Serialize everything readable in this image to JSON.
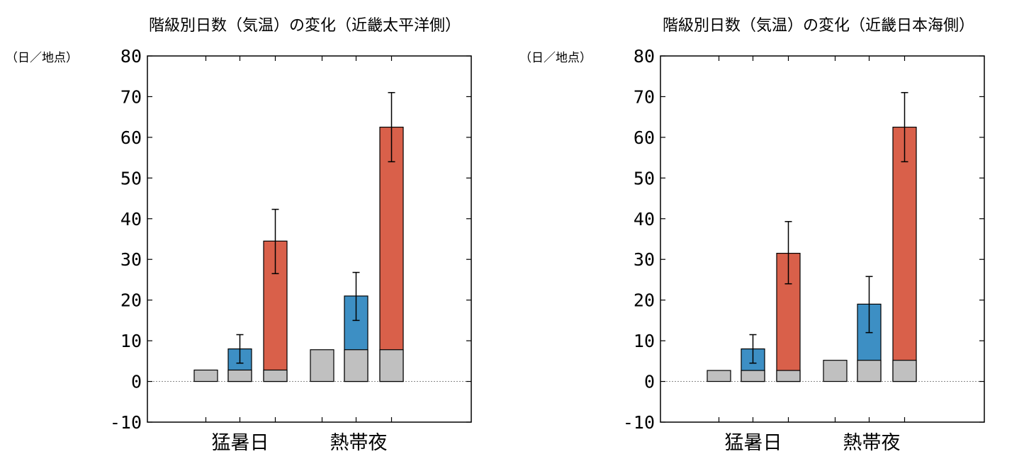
{
  "colors": {
    "baseline_gray": "#c0c0c0",
    "blue": "#3d8fc4",
    "red": "#d9604a",
    "frame": "#000000",
    "zero_line": "#888888"
  },
  "chart_data": [
    {
      "type": "bar",
      "title": "階級別日数（気温）の変化（近畿太平洋側）",
      "ylabel": "（日／地点）",
      "ylim": [
        -10,
        80
      ],
      "yticks": [
        "-10",
        "0",
        "10",
        "20",
        "30",
        "40",
        "50",
        "60",
        "70",
        "80"
      ],
      "groups": [
        "猛暑日",
        "熱帯夜"
      ],
      "bars": [
        {
          "group": "猛暑日",
          "kind": "present",
          "base": 2.8,
          "total": 2.8,
          "err": null
        },
        {
          "group": "猛暑日",
          "kind": "2c",
          "base": 2.8,
          "total": 8.0,
          "err": [
            4.5,
            11.5
          ]
        },
        {
          "group": "猛暑日",
          "kind": "4c",
          "base": 2.8,
          "total": 34.5,
          "err": [
            26.5,
            42.3
          ]
        },
        {
          "group": "熱帯夜",
          "kind": "present",
          "base": 7.8,
          "total": 7.8,
          "err": null
        },
        {
          "group": "熱帯夜",
          "kind": "2c",
          "base": 7.8,
          "total": 21.0,
          "err": [
            15.0,
            26.8
          ]
        },
        {
          "group": "熱帯夜",
          "kind": "4c",
          "base": 7.8,
          "total": 62.5,
          "err": [
            54.0,
            71.0
          ]
        }
      ]
    },
    {
      "type": "bar",
      "title": "階級別日数（気温）の変化（近畿日本海側）",
      "ylabel": "（日／地点）",
      "ylim": [
        -10,
        80
      ],
      "yticks": [
        "-10",
        "0",
        "10",
        "20",
        "30",
        "40",
        "50",
        "60",
        "70",
        "80"
      ],
      "groups": [
        "猛暑日",
        "熱帯夜"
      ],
      "bars": [
        {
          "group": "猛暑日",
          "kind": "present",
          "base": 2.7,
          "total": 2.7,
          "err": null
        },
        {
          "group": "猛暑日",
          "kind": "2c",
          "base": 2.7,
          "total": 8.0,
          "err": [
            4.5,
            11.5
          ]
        },
        {
          "group": "猛暑日",
          "kind": "4c",
          "base": 2.7,
          "total": 31.5,
          "err": [
            24.0,
            39.3
          ]
        },
        {
          "group": "熱帯夜",
          "kind": "present",
          "base": 5.2,
          "total": 5.2,
          "err": null
        },
        {
          "group": "熱帯夜",
          "kind": "2c",
          "base": 5.2,
          "total": 19.0,
          "err": [
            12.0,
            25.8
          ]
        },
        {
          "group": "熱帯夜",
          "kind": "4c",
          "base": 5.2,
          "total": 62.5,
          "err": [
            54.0,
            71.0
          ]
        }
      ]
    }
  ]
}
